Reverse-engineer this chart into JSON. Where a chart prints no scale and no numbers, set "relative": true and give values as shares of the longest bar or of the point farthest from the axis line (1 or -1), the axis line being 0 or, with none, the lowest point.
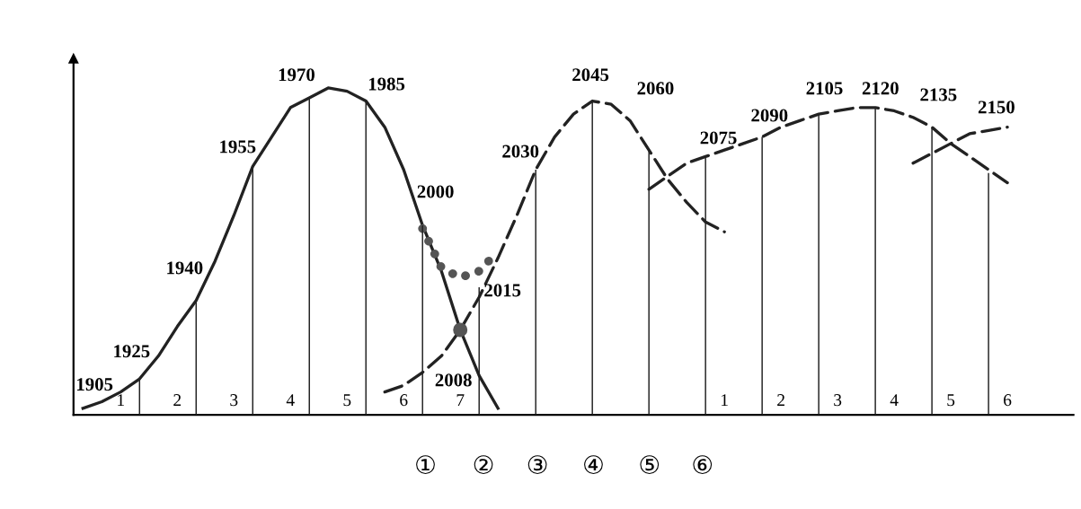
{
  "chart_data": {
    "type": "line",
    "relative": true,
    "categories": [
      null,
      null,
      "1",
      null,
      null,
      "2",
      null,
      null,
      "3",
      null,
      null,
      "4",
      null,
      null,
      "5",
      null,
      null,
      "6",
      null,
      null,
      "7",
      null,
      null,
      null,
      null,
      null,
      null,
      null,
      null,
      null,
      null,
      null,
      null,
      null,
      "1",
      null,
      null,
      "2",
      null,
      null,
      "3",
      null,
      null,
      "4",
      null,
      null,
      "5",
      null,
      null,
      "6",
      null,
      null,
      null
    ],
    "series": [
      {
        "type": "bar",
        "color": "#222222",
        "values": [
          null,
          null,
          null,
          0.11,
          null,
          null,
          0.35,
          null,
          null,
          0.76,
          null,
          null,
          0.97,
          null,
          null,
          0.96,
          null,
          null,
          0.58,
          null,
          null,
          0.39,
          null,
          null,
          0.75,
          null,
          null,
          0.96,
          null,
          null,
          0.81,
          null,
          null,
          0.79,
          null,
          null,
          0.85,
          null,
          null,
          0.92,
          null,
          null,
          0.94,
          null,
          null,
          0.88,
          null,
          null,
          0.74,
          null,
          null,
          null,
          null
        ]
      },
      {
        "color": "#222222",
        "line_style": "solid",
        "values": [
          0.02,
          0.04,
          0.07,
          0.11,
          0.18,
          0.27,
          0.35,
          0.47,
          0.61,
          0.76,
          0.85,
          0.94,
          0.97,
          1.0,
          0.99,
          0.96,
          0.88,
          0.75,
          0.58,
          0.44,
          0.26,
          0.12,
          0.02,
          null,
          null,
          null,
          null,
          null,
          null,
          null,
          null,
          null,
          null,
          null,
          null,
          null,
          null,
          null,
          null,
          null,
          null,
          null,
          null,
          null,
          null,
          null,
          null,
          null,
          null,
          null,
          null,
          null,
          null
        ]
      },
      {
        "color": "#222222",
        "line_style": "dashed",
        "values": [
          null,
          null,
          null,
          null,
          null,
          null,
          null,
          null,
          null,
          null,
          null,
          null,
          null,
          null,
          null,
          null,
          0.07,
          0.09,
          0.13,
          0.18,
          0.26,
          0.36,
          0.48,
          0.61,
          0.75,
          0.85,
          0.92,
          0.96,
          0.95,
          0.9,
          0.81,
          0.72,
          0.65,
          0.59,
          0.56,
          null,
          null,
          null,
          null,
          null,
          null,
          null,
          null,
          null,
          null,
          null,
          null,
          null,
          null,
          null,
          null,
          null,
          null
        ]
      },
      {
        "color": "#222222",
        "line_style": "dashed",
        "values": [
          null,
          null,
          null,
          null,
          null,
          null,
          null,
          null,
          null,
          null,
          null,
          null,
          null,
          null,
          null,
          null,
          null,
          null,
          null,
          null,
          null,
          null,
          null,
          null,
          null,
          null,
          null,
          null,
          null,
          null,
          0.69,
          0.73,
          0.77,
          0.79,
          0.81,
          0.83,
          0.85,
          0.88,
          0.9,
          0.92,
          0.93,
          0.94,
          0.94,
          0.93,
          0.91,
          0.88,
          0.83,
          0.79,
          0.75,
          0.71,
          null,
          null,
          null
        ]
      },
      {
        "color": "#222222",
        "line_style": "dashed",
        "values": [
          null,
          null,
          null,
          null,
          null,
          null,
          null,
          null,
          null,
          null,
          null,
          null,
          null,
          null,
          null,
          null,
          null,
          null,
          null,
          null,
          null,
          null,
          null,
          null,
          null,
          null,
          null,
          null,
          null,
          null,
          null,
          null,
          null,
          null,
          null,
          null,
          null,
          null,
          null,
          null,
          null,
          null,
          null,
          null,
          0.77,
          0.8,
          0.83,
          0.86,
          0.87,
          0.88,
          null,
          null,
          null
        ]
      },
      {
        "color": "#555555",
        "line_style": "dotted",
        "values": [
          null,
          null,
          null,
          null,
          null,
          null,
          null,
          null,
          null,
          null,
          null,
          null,
          null,
          null,
          null,
          null,
          null,
          null,
          0.57,
          0.45,
          0.42,
          0.44,
          0.5,
          null,
          null,
          null,
          null,
          null,
          null,
          null,
          null,
          null,
          null,
          null,
          null,
          null,
          null,
          null,
          null,
          null,
          null,
          null,
          null,
          null,
          null,
          null,
          null,
          null,
          null,
          null,
          null,
          null,
          null
        ]
      },
      {
        "type": "scatter",
        "color": "#555555",
        "marker": "circle",
        "values": [
          null,
          null,
          null,
          null,
          null,
          null,
          null,
          null,
          null,
          null,
          null,
          null,
          null,
          null,
          null,
          null,
          null,
          null,
          null,
          null,
          0.26,
          null,
          null,
          null,
          null,
          null,
          null,
          null,
          null,
          null,
          null,
          null,
          null,
          null,
          null,
          null,
          null,
          null,
          null,
          null,
          null,
          null,
          null,
          null,
          null,
          null,
          null,
          null,
          null,
          null,
          null,
          null,
          null
        ]
      }
    ],
    "annotations": [
      "1905",
      "1925",
      "1940",
      "1955",
      "1970",
      "1985",
      "2000",
      "2008",
      "2015",
      "2030",
      "2045",
      "2060",
      "2075",
      "2090",
      "2105",
      "2120",
      "2135",
      "2150",
      "①",
      "②",
      "③",
      "④",
      "⑤",
      "⑥"
    ]
  }
}
